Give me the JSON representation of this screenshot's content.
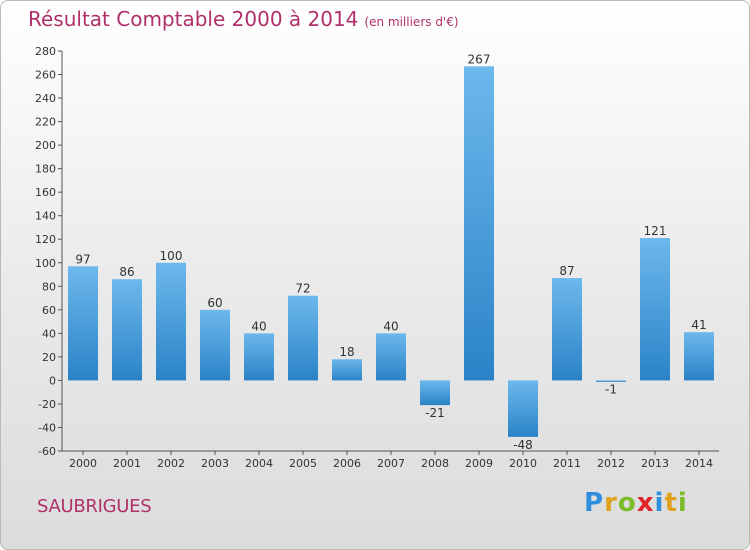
{
  "title": "Résultat Comptable 2000 à 2014",
  "subtitle": "(en milliers d'€)",
  "location": "SAUBRIGUES",
  "logo": {
    "p": "P",
    "r": "r",
    "o": "o",
    "x": "x",
    "i1": "i",
    "t": "t",
    "i2": "i"
  },
  "colors": {
    "title": "#b0306a",
    "bar_light": "#6db8ec",
    "bar_dark": "#2a83c7"
  },
  "chart_data": {
    "type": "bar",
    "categories": [
      "2000",
      "2001",
      "2002",
      "2003",
      "2004",
      "2005",
      "2006",
      "2007",
      "2008",
      "2009",
      "2010",
      "2011",
      "2012",
      "2013",
      "2014"
    ],
    "values": [
      97,
      86,
      100,
      60,
      40,
      72,
      18,
      40,
      -21,
      267,
      -48,
      87,
      -1,
      121,
      41
    ],
    "data_labels": [
      "97",
      "86",
      "100",
      "60",
      "40",
      "72",
      "18",
      "40",
      "-21",
      "267",
      "-48",
      "87",
      "-1",
      "121",
      "41"
    ],
    "yticks": [
      -60,
      -40,
      -20,
      0,
      20,
      40,
      60,
      80,
      100,
      120,
      140,
      160,
      180,
      200,
      220,
      240,
      260,
      280
    ],
    "ylim": [
      -60,
      280
    ],
    "grid": false,
    "legend": "none"
  }
}
